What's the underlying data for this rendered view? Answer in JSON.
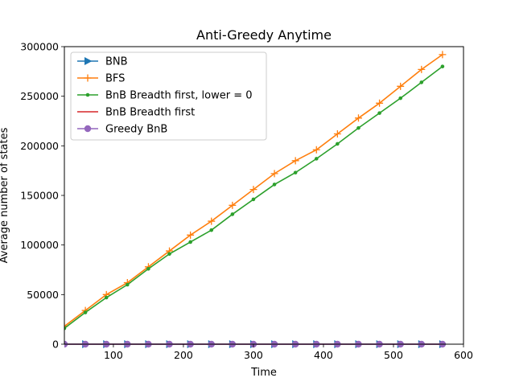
{
  "chart_data": {
    "type": "line",
    "title": "Anti-Greedy    Anytime",
    "xlabel": "Time",
    "ylabel": "Average number of states",
    "xlim": [
      30,
      600
    ],
    "ylim": [
      0,
      300000
    ],
    "xticks": [
      100,
      200,
      300,
      400,
      500,
      600
    ],
    "yticks": [
      0,
      50000,
      100000,
      150000,
      200000,
      250000,
      300000
    ],
    "grid": false,
    "legend_position": "top-left",
    "x": [
      30,
      60,
      90,
      120,
      150,
      180,
      210,
      240,
      270,
      300,
      330,
      360,
      390,
      420,
      450,
      480,
      510,
      540,
      570
    ],
    "series": [
      {
        "name": "BNB",
        "color": "#1f77b4",
        "marker": "triangle-right",
        "values": [
          0,
          0,
          0,
          0,
          0,
          0,
          0,
          0,
          0,
          0,
          0,
          0,
          0,
          0,
          0,
          0,
          0,
          0,
          0
        ]
      },
      {
        "name": "BFS",
        "color": "#ff7f0e",
        "marker": "plus",
        "values": [
          18000,
          34000,
          50000,
          62000,
          78000,
          94000,
          110000,
          124000,
          140000,
          156000,
          172000,
          185000,
          196000,
          212000,
          228000,
          243000,
          260000,
          277000,
          292000
        ]
      },
      {
        "name": "BnB Breadth first, lower = 0",
        "color": "#2ca02c",
        "marker": "dot",
        "values": [
          16000,
          32000,
          47000,
          60000,
          76000,
          91000,
          103000,
          115000,
          131000,
          146000,
          161000,
          173000,
          187000,
          202000,
          218000,
          233000,
          248000,
          264000,
          280000
        ]
      },
      {
        "name": "BnB Breadth first",
        "color": "#d62728",
        "marker": "none",
        "values": [
          0,
          0,
          0,
          0,
          0,
          0,
          0,
          0,
          0,
          0,
          0,
          0,
          0,
          0,
          0,
          0,
          0,
          0,
          0
        ]
      },
      {
        "name": "Greedy BnB",
        "color": "#9467bd",
        "marker": "circle",
        "values": [
          0,
          0,
          0,
          0,
          0,
          0,
          0,
          0,
          0,
          0,
          0,
          0,
          0,
          0,
          0,
          0,
          0,
          0,
          0
        ]
      }
    ]
  }
}
